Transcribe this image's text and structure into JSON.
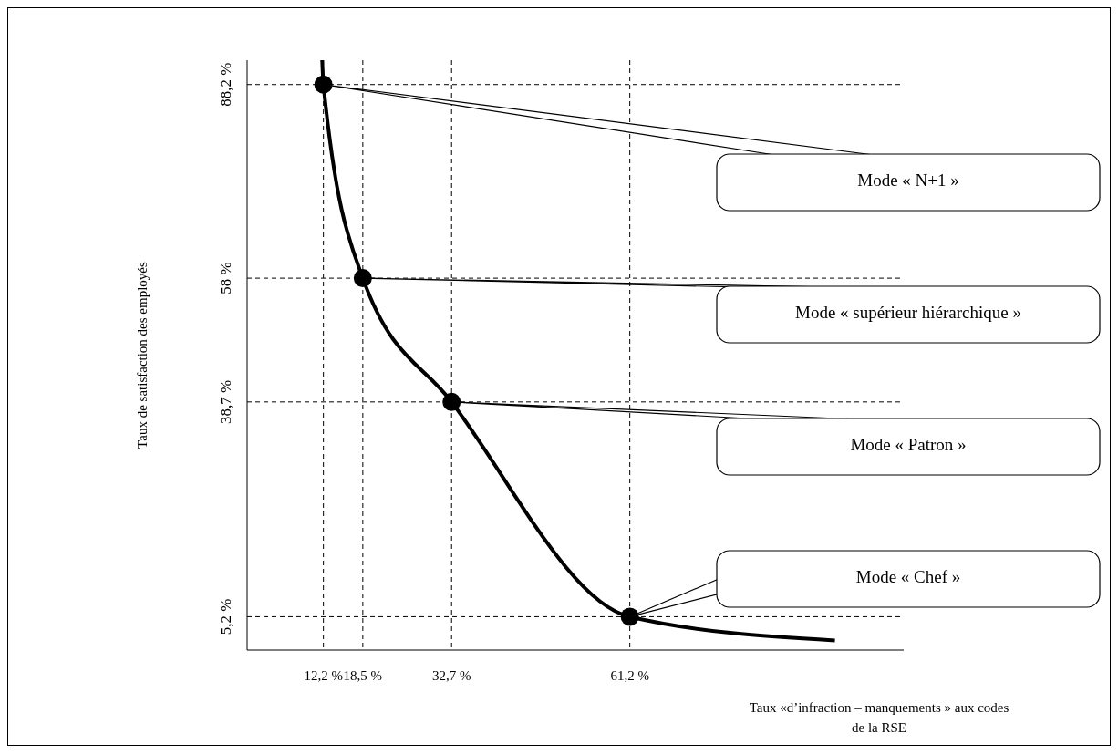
{
  "chart_data": {
    "type": "line",
    "xlabel": "Taux «d’infraction – manquements » aux codes de la RSE",
    "ylabel": "Taux de satisfaction des employés",
    "xlim": [
      0,
      105
    ],
    "ylim": [
      0,
      92
    ],
    "xticks": [
      {
        "value": 12.2,
        "label": "12,2 %"
      },
      {
        "value": 18.5,
        "label": "18,5 %"
      },
      {
        "value": 32.7,
        "label": "32,7 %"
      },
      {
        "value": 61.2,
        "label": "61,2 %"
      }
    ],
    "yticks": [
      {
        "value": 5.2,
        "label": "5,2 %"
      },
      {
        "value": 38.7,
        "label": "38,7 %"
      },
      {
        "value": 58,
        "label": "58 %"
      },
      {
        "value": 88.2,
        "label": "88,2 %"
      }
    ],
    "grid": true,
    "series": [
      {
        "type": "line",
        "color": "#000000",
        "line_style": "solid",
        "marker": "none",
        "x": [
          12,
          12.2,
          18.5,
          32.7,
          61.2,
          94
        ],
        "values": [
          92,
          88.2,
          58,
          38.7,
          5.2,
          1.5
        ]
      },
      {
        "type": "scatter",
        "color": "#000000",
        "marker": "circle",
        "x": [
          12.2,
          18.5,
          32.7,
          61.2
        ],
        "values": [
          88.2,
          58,
          38.7,
          5.2
        ]
      }
    ],
    "annotations": [
      {
        "text": "Mode « N+1 »",
        "x": 12.2,
        "y": 88.2
      },
      {
        "text": "Mode « supérieur hiérarchique »",
        "x": 18.5,
        "y": 58
      },
      {
        "text": "Mode « Patron »",
        "x": 32.7,
        "y": 38.7
      },
      {
        "text": "Mode « Chef »",
        "x": 61.2,
        "y": 5.2
      }
    ]
  }
}
